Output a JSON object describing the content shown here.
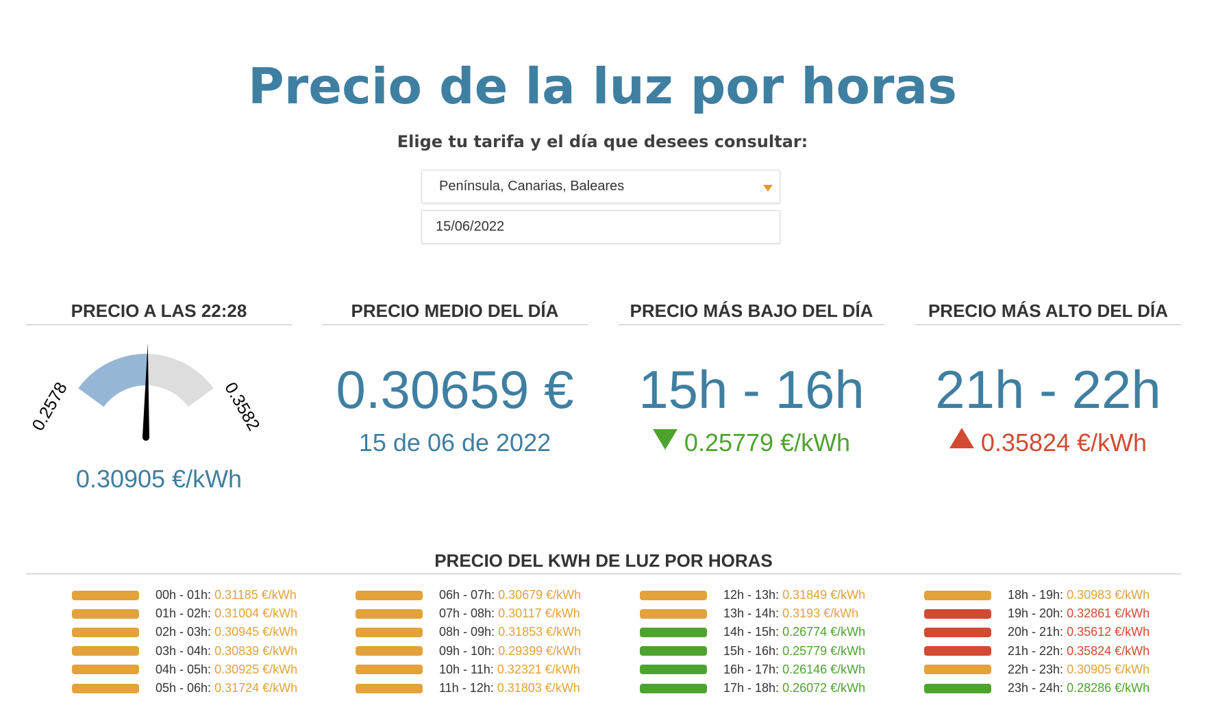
{
  "header": {
    "title": "Precio de la luz por horas",
    "subtitle": "Elige tu tarifa y el día que desees consultar:"
  },
  "form": {
    "region_selected": "Península, Canarias, Baleares",
    "date_value": "15/06/2022"
  },
  "colors": {
    "accent": "#3f7fa1",
    "medium": "#e3a23a",
    "low": "#4ea32f",
    "high": "#d24a31",
    "gauge_fill": "#95b7d5",
    "gauge_track": "#dddddd"
  },
  "cards": {
    "current": {
      "title": "PRECIO A LAS 22:28",
      "gauge_min": "0.2578",
      "gauge_max": "0.3582",
      "min_value": 0.2578,
      "max_value": 0.3582,
      "current_value": 0.30905,
      "value": "0.30905 €/kWh"
    },
    "average": {
      "title": "PRECIO MEDIO DEL DÍA",
      "value": "0.30659 €",
      "date": "15 de 06 de 2022"
    },
    "lowest": {
      "title": "PRECIO MÁS BAJO DEL DÍA",
      "range": "15h - 16h",
      "price": "0.25779 €/kWh"
    },
    "highest": {
      "title": "PRECIO MÁS ALTO DEL DÍA",
      "range": "21h - 22h",
      "price": "0.35824 €/kWh"
    }
  },
  "hourly": {
    "title": "PRECIO DEL KWH DE LUZ POR HORAS",
    "rows": [
      {
        "range": "00h - 01h:",
        "price": "0.31185 €/kWh",
        "level": "medium"
      },
      {
        "range": "01h - 02h:",
        "price": "0.31004 €/kWh",
        "level": "medium"
      },
      {
        "range": "02h - 03h:",
        "price": "0.30945 €/kWh",
        "level": "medium"
      },
      {
        "range": "03h - 04h:",
        "price": "0.30839 €/kWh",
        "level": "medium"
      },
      {
        "range": "04h - 05h:",
        "price": "0.30925 €/kWh",
        "level": "medium"
      },
      {
        "range": "05h - 06h:",
        "price": "0.31724 €/kWh",
        "level": "medium"
      },
      {
        "range": "06h - 07h:",
        "price": "0.30679 €/kWh",
        "level": "medium"
      },
      {
        "range": "07h - 08h:",
        "price": "0.30117 €/kWh",
        "level": "medium"
      },
      {
        "range": "08h - 09h:",
        "price": "0.31853 €/kWh",
        "level": "medium"
      },
      {
        "range": "09h - 10h:",
        "price": "0.29399 €/kWh",
        "level": "medium"
      },
      {
        "range": "10h - 11h:",
        "price": "0.32321 €/kWh",
        "level": "medium"
      },
      {
        "range": "11h - 12h:",
        "price": "0.31803 €/kWh",
        "level": "medium"
      },
      {
        "range": "12h - 13h:",
        "price": "0.31849 €/kWh",
        "level": "medium"
      },
      {
        "range": "13h - 14h:",
        "price": "0.3193 €/kWh",
        "level": "medium"
      },
      {
        "range": "14h - 15h:",
        "price": "0.26774 €/kWh",
        "level": "low"
      },
      {
        "range": "15h - 16h:",
        "price": "0.25779 €/kWh",
        "level": "low"
      },
      {
        "range": "16h - 17h:",
        "price": "0.26146 €/kWh",
        "level": "low"
      },
      {
        "range": "17h - 18h:",
        "price": "0.26072 €/kWh",
        "level": "low"
      },
      {
        "range": "18h - 19h:",
        "price": "0.30983 €/kWh",
        "level": "medium"
      },
      {
        "range": "19h - 20h:",
        "price": "0.32861 €/kWh",
        "level": "high"
      },
      {
        "range": "20h - 21h:",
        "price": "0.35612 €/kWh",
        "level": "high"
      },
      {
        "range": "21h - 22h:",
        "price": "0.35824 €/kWh",
        "level": "high"
      },
      {
        "range": "22h - 23h:",
        "price": "0.30905 €/kWh",
        "level": "medium"
      },
      {
        "range": "23h - 24h:",
        "price": "0.28286 €/kWh",
        "level": "low"
      }
    ]
  }
}
